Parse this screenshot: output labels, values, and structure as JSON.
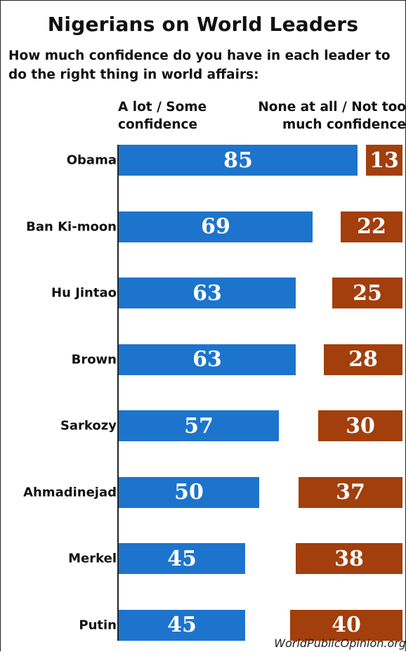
{
  "title": "Nigerians on World Leaders",
  "subtitle": "How much confidence do you have in each leader to do the right thing in world affairs:",
  "source": "WorldPublicOpinion.org",
  "colors": {
    "positive": "#1d74cc",
    "negative": "#a23f0c"
  },
  "chart_data": {
    "type": "bar",
    "orientation": "horizontal",
    "categories": [
      "Obama",
      "Ban Ki-moon",
      "Hu Jintao",
      "Brown",
      "Sarkozy",
      "Ahmadinejad",
      "Merkel",
      "Putin"
    ],
    "series": [
      {
        "name": "A lot / Some confidence",
        "values": [
          85,
          69,
          63,
          63,
          57,
          50,
          45,
          45
        ]
      },
      {
        "name": "None at all / Not too much confidence",
        "values": [
          13,
          22,
          25,
          28,
          30,
          37,
          38,
          40
        ]
      }
    ]
  }
}
